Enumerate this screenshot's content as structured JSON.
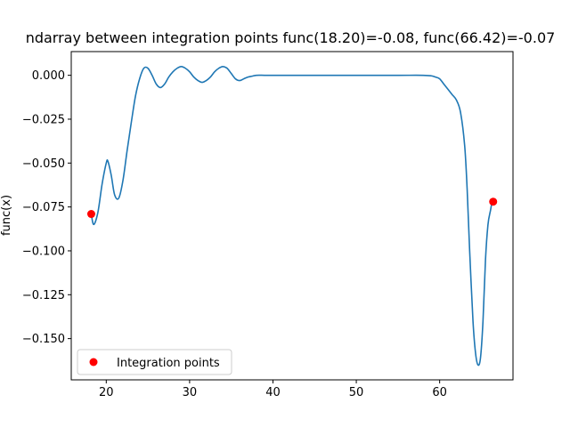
{
  "chart_data": {
    "type": "line",
    "title": "ndarray between integration points func(18.20)=-0.08, func(66.42)=-0.07",
    "xlabel": "",
    "ylabel": "func(x)",
    "xlim": [
      15.8,
      68.8
    ],
    "ylim": [
      -0.1735,
      0.0135
    ],
    "x_ticks": [
      20,
      30,
      40,
      50,
      60
    ],
    "x_tick_labels": [
      "20",
      "30",
      "40",
      "50",
      "60"
    ],
    "y_ticks": [
      0.0,
      -0.025,
      -0.05,
      -0.075,
      -0.1,
      -0.125,
      -0.15
    ],
    "y_tick_labels": [
      "0.000",
      "−0.025",
      "−0.050",
      "−0.075",
      "−0.100",
      "−0.125",
      "−0.150"
    ],
    "grid": false,
    "legend_position": "lower-left",
    "colors": {
      "line": "#1f77b4",
      "points": "#ff0000"
    },
    "series": [
      {
        "x": [
          18.2,
          18.5,
          19.0,
          19.5,
          20.0,
          20.2,
          20.6,
          21.0,
          21.5,
          22.0,
          22.5,
          23.0,
          23.5,
          24.0,
          24.5,
          25.0,
          25.5,
          26.0,
          26.5,
          27.0,
          27.5,
          28.0,
          28.5,
          29.0,
          29.5,
          30.0,
          30.5,
          31.0,
          31.5,
          32.0,
          32.5,
          33.0,
          33.5,
          34.0,
          34.5,
          35.0,
          35.5,
          36.0,
          36.5,
          37.0,
          37.5,
          38.0,
          39.0,
          40.0,
          45.0,
          50.0,
          55.0,
          58.0,
          59.0,
          59.5,
          60.0,
          60.5,
          61.0,
          61.5,
          62.0,
          62.5,
          63.0,
          63.3,
          63.6,
          64.0,
          64.3,
          64.6,
          64.9,
          65.2,
          65.5,
          65.8,
          66.1,
          66.3,
          66.42
        ],
        "y": [
          -0.079,
          -0.085,
          -0.078,
          -0.062,
          -0.05,
          -0.049,
          -0.057,
          -0.068,
          -0.07,
          -0.06,
          -0.043,
          -0.027,
          -0.012,
          -0.002,
          0.004,
          0.004,
          0.0,
          -0.005,
          -0.007,
          -0.005,
          -0.001,
          0.002,
          0.004,
          0.005,
          0.004,
          0.002,
          -0.001,
          -0.003,
          -0.004,
          -0.003,
          -0.001,
          0.002,
          0.004,
          0.005,
          0.004,
          0.001,
          -0.002,
          -0.003,
          -0.002,
          -0.001,
          -0.0005,
          0.0,
          0.0,
          0.0,
          0.0,
          0.0,
          0.0,
          0.0,
          -0.0003,
          -0.001,
          -0.002,
          -0.005,
          -0.008,
          -0.011,
          -0.014,
          -0.021,
          -0.04,
          -0.065,
          -0.1,
          -0.14,
          -0.158,
          -0.165,
          -0.161,
          -0.14,
          -0.105,
          -0.085,
          -0.077,
          -0.072,
          -0.072
        ]
      },
      {
        "name": "Integration points",
        "type": "scatter",
        "x": [
          18.2,
          66.42
        ],
        "y": [
          -0.079,
          -0.072
        ]
      }
    ]
  }
}
